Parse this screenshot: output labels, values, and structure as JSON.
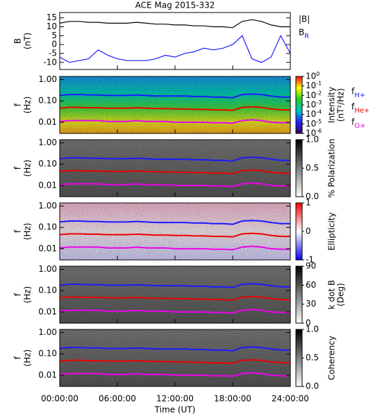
{
  "chart_data": [
    {
      "type": "line",
      "title": "ACE Mag 2015-332",
      "ylabel": [
        "B",
        "(nT)"
      ],
      "xlim": [
        0,
        24
      ],
      "ylim": [
        -14,
        18
      ],
      "yticks": [
        15,
        10,
        5,
        0,
        -5,
        -10
      ],
      "x": [
        0,
        1,
        2,
        3,
        4,
        5,
        6,
        7,
        8,
        9,
        10,
        11,
        12,
        13,
        14,
        15,
        16,
        17,
        18,
        19,
        20,
        21,
        22,
        23,
        24
      ],
      "series": [
        {
          "name": "|B|",
          "color": "#000000",
          "values": [
            12,
            13,
            13,
            12.5,
            12.5,
            12,
            12,
            12,
            12.5,
            12,
            11.5,
            11.5,
            11,
            11,
            10.5,
            10.5,
            10,
            10,
            9.5,
            13,
            14,
            13,
            11,
            10,
            10
          ]
        },
        {
          "name": "B",
          "subscript": "R",
          "color": "#1a1aff",
          "values": [
            -7,
            -10,
            -9,
            -8,
            -3,
            -6,
            -8,
            -9,
            -9,
            -9,
            -8,
            -6,
            -7,
            -5,
            -4,
            -2,
            -3,
            -2,
            0,
            5,
            -8,
            -10,
            -7,
            5,
            -5
          ]
        }
      ]
    },
    {
      "type": "spectrogram",
      "ylabel": [
        "f",
        "(Hz)"
      ],
      "ylog": true,
      "xlim": [
        0,
        24
      ],
      "ylim": [
        0.003,
        1.4
      ],
      "yticks": [
        {
          "value": 1,
          "label": "1.00"
        },
        {
          "value": 0.1,
          "label": "0.10"
        },
        0.01
      ],
      "colormap": "rainbow",
      "clim": [
        1e-06,
        1
      ],
      "clog": true,
      "colorbar_label": [
        "Intensity",
        "(nT²/Hz)"
      ],
      "cticks": [
        {
          "value": 1,
          "label": "10",
          "sup": "0"
        },
        {
          "value": 0.1,
          "label": "10",
          "sup": "-1"
        },
        {
          "value": 0.01,
          "label": "10",
          "sup": "-2"
        },
        {
          "value": 0.001,
          "label": "10",
          "sup": "-3"
        },
        {
          "value": 0.0001,
          "label": "10",
          "sup": "-4"
        },
        {
          "value": 1e-05,
          "label": "10",
          "sup": "-5"
        },
        {
          "value": 1e-06,
          "label": "10",
          "sup": "-6"
        }
      ],
      "x": [
        0,
        1,
        2,
        3,
        4,
        5,
        6,
        7,
        8,
        9,
        10,
        11,
        12,
        13,
        14,
        15,
        16,
        17,
        18,
        19,
        20,
        21,
        22,
        23,
        24
      ],
      "series": [
        {
          "name": "f",
          "subscript": "H+",
          "color": "#1a1aff",
          "values": [
            0.18,
            0.2,
            0.2,
            0.19,
            0.19,
            0.18,
            0.18,
            0.18,
            0.19,
            0.18,
            0.17,
            0.17,
            0.17,
            0.17,
            0.16,
            0.16,
            0.15,
            0.15,
            0.14,
            0.2,
            0.21,
            0.2,
            0.17,
            0.15,
            0.15
          ]
        },
        {
          "name": "f",
          "subscript": "He+",
          "color": "#ee0000",
          "values": [
            0.046,
            0.05,
            0.05,
            0.048,
            0.048,
            0.046,
            0.046,
            0.046,
            0.048,
            0.046,
            0.044,
            0.044,
            0.042,
            0.042,
            0.04,
            0.04,
            0.038,
            0.038,
            0.036,
            0.05,
            0.053,
            0.05,
            0.042,
            0.038,
            0.038
          ]
        },
        {
          "name": "f",
          "subscript": "O+",
          "color": "#ee00ee",
          "values": [
            0.011,
            0.012,
            0.012,
            0.012,
            0.012,
            0.011,
            0.011,
            0.011,
            0.012,
            0.011,
            0.011,
            0.011,
            0.01,
            0.01,
            0.01,
            0.01,
            0.0095,
            0.0095,
            0.009,
            0.012,
            0.013,
            0.012,
            0.01,
            0.0095,
            0.0095
          ]
        }
      ]
    },
    {
      "type": "spectrogram",
      "ylabel": [
        "f",
        "(Hz)"
      ],
      "ylog": true,
      "xlim": [
        0,
        24
      ],
      "ylim": [
        0.003,
        1.4
      ],
      "yticks": [
        {
          "value": 1,
          "label": "1.00"
        },
        {
          "value": 0.1,
          "label": "0.10"
        },
        0.01
      ],
      "colormap": "gray",
      "clim": [
        0,
        1
      ],
      "colorbar_label": [
        "% Polarization"
      ],
      "cticks": [
        {
          "value": 0,
          "label": "0.0"
        },
        0.5,
        {
          "value": 1,
          "label": "1.0"
        }
      ],
      "x": [
        0,
        1,
        2,
        3,
        4,
        5,
        6,
        7,
        8,
        9,
        10,
        11,
        12,
        13,
        14,
        15,
        16,
        17,
        18,
        19,
        20,
        21,
        22,
        23,
        24
      ],
      "series": [
        {
          "color": "#1a1aff",
          "values": [
            0.18,
            0.2,
            0.2,
            0.19,
            0.19,
            0.18,
            0.18,
            0.18,
            0.19,
            0.18,
            0.17,
            0.17,
            0.17,
            0.17,
            0.16,
            0.16,
            0.15,
            0.15,
            0.14,
            0.2,
            0.21,
            0.2,
            0.17,
            0.15,
            0.15
          ]
        },
        {
          "color": "#ee0000",
          "values": [
            0.046,
            0.05,
            0.05,
            0.048,
            0.048,
            0.046,
            0.046,
            0.046,
            0.048,
            0.046,
            0.044,
            0.044,
            0.042,
            0.042,
            0.04,
            0.04,
            0.038,
            0.038,
            0.036,
            0.05,
            0.053,
            0.05,
            0.042,
            0.038,
            0.038
          ]
        },
        {
          "color": "#ee00ee",
          "values": [
            0.011,
            0.012,
            0.012,
            0.012,
            0.012,
            0.011,
            0.011,
            0.011,
            0.012,
            0.011,
            0.011,
            0.011,
            0.01,
            0.01,
            0.01,
            0.01,
            0.0095,
            0.0095,
            0.009,
            0.012,
            0.013,
            0.012,
            0.01,
            0.0095,
            0.0095
          ]
        }
      ]
    },
    {
      "type": "spectrogram",
      "ylabel": [
        "f",
        "(Hz)"
      ],
      "ylog": true,
      "xlim": [
        0,
        24
      ],
      "ylim": [
        0.003,
        1.4
      ],
      "yticks": [
        {
          "value": 1,
          "label": "1.00"
        },
        {
          "value": 0.1,
          "label": "0.10"
        },
        0.01
      ],
      "colormap": "bwr",
      "clim": [
        -1,
        1
      ],
      "colorbar_label": [
        "Ellipticity"
      ],
      "cticks": [
        1,
        0,
        -1
      ],
      "x": [
        0,
        1,
        2,
        3,
        4,
        5,
        6,
        7,
        8,
        9,
        10,
        11,
        12,
        13,
        14,
        15,
        16,
        17,
        18,
        19,
        20,
        21,
        22,
        23,
        24
      ],
      "series": [
        {
          "color": "#1a1aff",
          "values": [
            0.18,
            0.2,
            0.2,
            0.19,
            0.19,
            0.18,
            0.18,
            0.18,
            0.19,
            0.18,
            0.17,
            0.17,
            0.17,
            0.17,
            0.16,
            0.16,
            0.15,
            0.15,
            0.14,
            0.2,
            0.21,
            0.2,
            0.17,
            0.15,
            0.15
          ]
        },
        {
          "color": "#ee0000",
          "values": [
            0.046,
            0.05,
            0.05,
            0.048,
            0.048,
            0.046,
            0.046,
            0.046,
            0.048,
            0.046,
            0.044,
            0.044,
            0.042,
            0.042,
            0.04,
            0.04,
            0.038,
            0.038,
            0.036,
            0.05,
            0.053,
            0.05,
            0.042,
            0.038,
            0.038
          ]
        },
        {
          "color": "#ee00ee",
          "values": [
            0.011,
            0.012,
            0.012,
            0.012,
            0.012,
            0.011,
            0.011,
            0.011,
            0.012,
            0.011,
            0.011,
            0.011,
            0.01,
            0.01,
            0.01,
            0.01,
            0.0095,
            0.0095,
            0.009,
            0.012,
            0.013,
            0.012,
            0.01,
            0.0095,
            0.0095
          ]
        }
      ]
    },
    {
      "type": "spectrogram",
      "ylabel": [
        "f",
        "(Hz)"
      ],
      "ylog": true,
      "xlim": [
        0,
        24
      ],
      "ylim": [
        0.003,
        1.4
      ],
      "yticks": [
        {
          "value": 1,
          "label": "1.00"
        },
        {
          "value": 0.1,
          "label": "0.10"
        },
        0.01
      ],
      "colormap": "gray",
      "clim": [
        0,
        90
      ],
      "colorbar_label": [
        "k dot B",
        "(Deg)"
      ],
      "cticks": [
        90,
        60,
        30,
        0
      ],
      "x": [
        0,
        1,
        2,
        3,
        4,
        5,
        6,
        7,
        8,
        9,
        10,
        11,
        12,
        13,
        14,
        15,
        16,
        17,
        18,
        19,
        20,
        21,
        22,
        23,
        24
      ],
      "series": [
        {
          "color": "#1a1aff",
          "values": [
            0.18,
            0.2,
            0.2,
            0.19,
            0.19,
            0.18,
            0.18,
            0.18,
            0.19,
            0.18,
            0.17,
            0.17,
            0.17,
            0.17,
            0.16,
            0.16,
            0.15,
            0.15,
            0.14,
            0.2,
            0.21,
            0.2,
            0.17,
            0.15,
            0.15
          ]
        },
        {
          "color": "#ee0000",
          "values": [
            0.046,
            0.05,
            0.05,
            0.048,
            0.048,
            0.046,
            0.046,
            0.046,
            0.048,
            0.046,
            0.044,
            0.044,
            0.042,
            0.042,
            0.04,
            0.04,
            0.038,
            0.038,
            0.036,
            0.05,
            0.053,
            0.05,
            0.042,
            0.038,
            0.038
          ]
        },
        {
          "color": "#ee00ee",
          "values": [
            0.011,
            0.012,
            0.012,
            0.012,
            0.012,
            0.011,
            0.011,
            0.011,
            0.012,
            0.011,
            0.011,
            0.011,
            0.01,
            0.01,
            0.01,
            0.01,
            0.0095,
            0.0095,
            0.009,
            0.012,
            0.013,
            0.012,
            0.01,
            0.0095,
            0.0095
          ]
        }
      ]
    },
    {
      "type": "spectrogram",
      "ylabel": [
        "f",
        "(Hz)"
      ],
      "ylog": true,
      "xlim": [
        0,
        24
      ],
      "ylim": [
        0.003,
        1.4
      ],
      "yticks": [
        {
          "value": 1,
          "label": "1.00"
        },
        {
          "value": 0.1,
          "label": "0.10"
        },
        0.01
      ],
      "colormap": "gray",
      "clim": [
        0,
        1
      ],
      "colorbar_label": [
        "Coherency"
      ],
      "cticks": [
        {
          "value": 0,
          "label": "0.0"
        },
        0.5,
        {
          "value": 1,
          "label": "1.0"
        }
      ],
      "xlabel": "Time (UT)",
      "xticks": [
        {
          "value": 0,
          "label": "00:00:00"
        },
        {
          "value": 6,
          "label": "06:00:00"
        },
        {
          "value": 12,
          "label": "12:00:00"
        },
        {
          "value": 18,
          "label": "18:00:00"
        },
        {
          "value": 24,
          "label": "24:00:00"
        }
      ],
      "x": [
        0,
        1,
        2,
        3,
        4,
        5,
        6,
        7,
        8,
        9,
        10,
        11,
        12,
        13,
        14,
        15,
        16,
        17,
        18,
        19,
        20,
        21,
        22,
        23,
        24
      ],
      "series": [
        {
          "color": "#1a1aff",
          "values": [
            0.18,
            0.2,
            0.2,
            0.19,
            0.19,
            0.18,
            0.18,
            0.18,
            0.19,
            0.18,
            0.17,
            0.17,
            0.17,
            0.17,
            0.16,
            0.16,
            0.15,
            0.15,
            0.14,
            0.2,
            0.21,
            0.2,
            0.17,
            0.15,
            0.15
          ]
        },
        {
          "color": "#ee0000",
          "values": [
            0.046,
            0.05,
            0.05,
            0.048,
            0.048,
            0.046,
            0.046,
            0.046,
            0.048,
            0.046,
            0.044,
            0.044,
            0.042,
            0.042,
            0.04,
            0.04,
            0.038,
            0.038,
            0.036,
            0.05,
            0.053,
            0.05,
            0.042,
            0.038,
            0.038
          ]
        },
        {
          "color": "#ee00ee",
          "values": [
            0.011,
            0.012,
            0.012,
            0.012,
            0.012,
            0.011,
            0.011,
            0.011,
            0.012,
            0.011,
            0.011,
            0.011,
            0.01,
            0.01,
            0.01,
            0.01,
            0.0095,
            0.0095,
            0.009,
            0.012,
            0.013,
            0.012,
            0.01,
            0.0095,
            0.0095
          ]
        }
      ]
    }
  ]
}
